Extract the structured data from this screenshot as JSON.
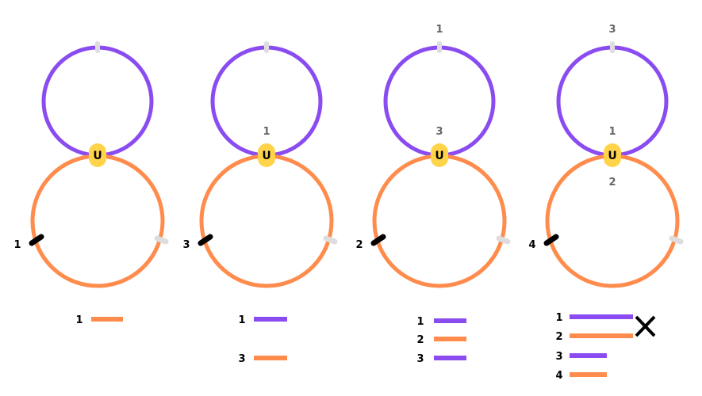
{
  "colors": {
    "purple": "#8a4cf0",
    "orange": "#ff8c4c",
    "yellow": "#ffd44a",
    "black": "#000000",
    "gray": "#dddddd",
    "darkgray": "#666666"
  },
  "node_label": "U",
  "panels": [
    {
      "left_label": "1",
      "purple_top_label": "",
      "purple_bottom_label": "",
      "orange_top_label": "",
      "legend": [
        {
          "label": "1",
          "color": "orange"
        }
      ]
    },
    {
      "left_label": "3",
      "purple_top_label": "",
      "purple_bottom_label": "1",
      "orange_top_label": "",
      "legend": [
        {
          "label": "1",
          "color": "purple"
        },
        {
          "label": "3",
          "color": "orange"
        }
      ]
    },
    {
      "left_label": "2",
      "purple_top_label": "1",
      "purple_bottom_label": "3",
      "orange_top_label": "",
      "legend": [
        {
          "label": "1",
          "color": "purple"
        },
        {
          "label": "2",
          "color": "orange"
        },
        {
          "label": "3",
          "color": "purple"
        }
      ]
    },
    {
      "left_label": "4",
      "purple_top_label": "3",
      "purple_bottom_label": "1",
      "orange_top_label": "2",
      "legend": [
        {
          "label": "1",
          "color": "purple"
        },
        {
          "label": "2",
          "color": "orange"
        },
        {
          "label": "3",
          "color": "purple"
        },
        {
          "label": "4",
          "color": "orange"
        }
      ],
      "crossed_out": true
    }
  ]
}
